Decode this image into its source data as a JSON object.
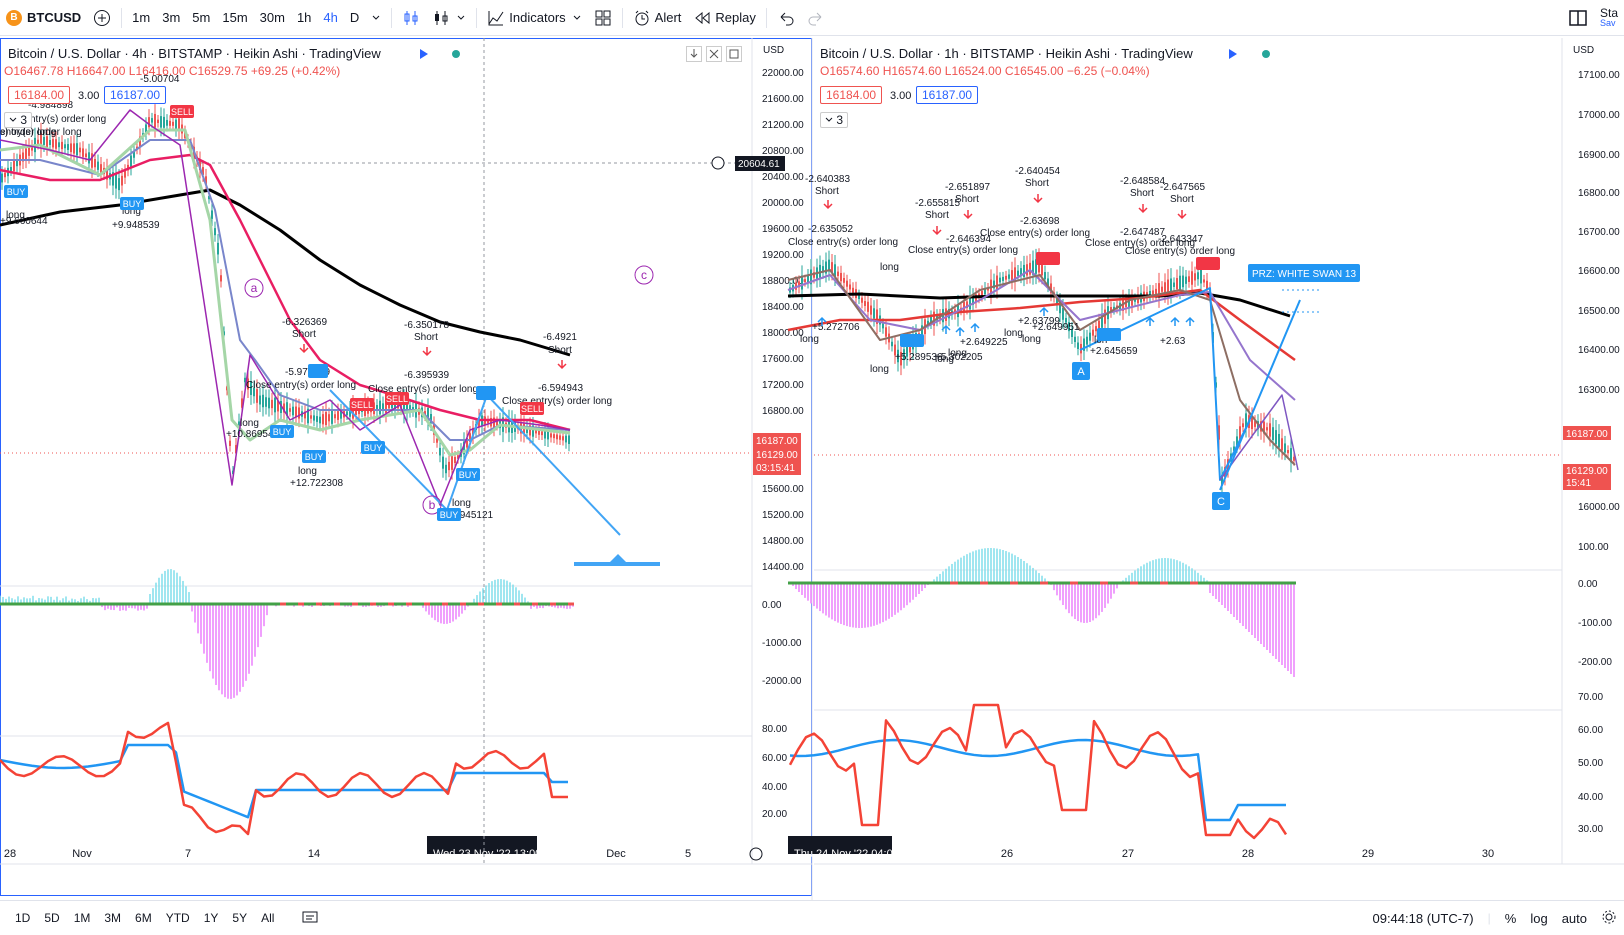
{
  "toolbar": {
    "symbol": "BTCUSD",
    "symbol_icon": "B",
    "timeframes": [
      "1m",
      "3m",
      "5m",
      "15m",
      "30m",
      "1h",
      "4h",
      "D"
    ],
    "active_timeframe": "4h",
    "indicators_label": "Indicators",
    "alert_label": "Alert",
    "replay_label": "Replay",
    "save_top": "Sta",
    "save_bottom": "Sav"
  },
  "left_chart": {
    "title": "Bitcoin / U.S. Dollar · 4h · BITSTAMP · Heikin Ashi · TradingView",
    "ohlc": "O16467.78 H16647.00 L16416.00 C16529.75 +69.25 (+0.42%)",
    "bid": "16184.00",
    "qty": "3.00",
    "ask": "16187.00",
    "collapse_count": "3",
    "currency": "USD",
    "y_labels": [
      "22000.00",
      "21600.00",
      "21200.00",
      "20800.00",
      "20400.00",
      "20000.00",
      "19600.00",
      "19200.00",
      "18800.00",
      "18400.00",
      "18000.00",
      "17600.00",
      "17200.00",
      "16800.00",
      "15600.00",
      "15200.00",
      "14800.00",
      "14400.00"
    ],
    "crosshair_price": "20604.61",
    "price_tag_1": "16187.00",
    "price_tag_2": "16129.00",
    "price_tag_3": "03:15:41",
    "macd_labels": [
      "0.00",
      "-1000.00",
      "-2000.00"
    ],
    "rsi_labels": [
      "80.00",
      "60.00",
      "40.00",
      "20.00"
    ],
    "x_labels": [
      "28",
      "Nov",
      "7",
      "14",
      "Dec",
      "5"
    ],
    "x_highlight": "Wed 23 Nov '22",
    "x_highlight_time": "13:00",
    "wave_a": "a",
    "wave_b": "b",
    "wave_c": "c",
    "annotations": [
      {
        "text": "-6.326369"
      },
      {
        "text": "Short"
      },
      {
        "text": "-6.350178"
      },
      {
        "text": "Short"
      },
      {
        "text": "-6.4921"
      },
      {
        "text": "Short"
      },
      {
        "text": "-5.979329"
      },
      {
        "text": "-6.395939"
      },
      {
        "text": "-6.594943"
      },
      {
        "text": "Close entry(s) order long"
      },
      {
        "text": "Close entry(s) order long"
      },
      {
        "text": "Close entry(s) order long"
      },
      {
        "text": "long"
      },
      {
        "text": "+10.869543"
      },
      {
        "text": "long"
      },
      {
        "text": "+12.722308"
      },
      {
        "text": "long"
      },
      {
        "text": "+12.945121"
      },
      {
        "text": "long"
      },
      {
        "text": "+9.948539"
      },
      {
        "text": "long"
      },
      {
        "text": "+9.660644"
      },
      {
        "text": "-5.00704"
      },
      {
        "text": "-4.984898"
      },
      {
        "text": "ntry(s) order long"
      },
      {
        "text": "entry(s) order long"
      },
      {
        "text": "s) order long"
      }
    ],
    "tags": [
      "SELL",
      "SELL",
      "SELL",
      "SELL",
      "BUY",
      "BUY",
      "BUY",
      "BUY",
      "BUY",
      "BUY",
      "BUY"
    ]
  },
  "right_chart": {
    "title": "Bitcoin / U.S. Dollar · 1h · BITSTAMP · Heikin Ashi · TradingView",
    "ohlc": "O16574.60 H16574.60 L16524.00 C16545.00 −6.25 (−0.04%)",
    "bid": "16184.00",
    "qty": "3.00",
    "ask": "16187.00",
    "collapse_count": "3",
    "currency": "USD",
    "y_labels": [
      "17100.00",
      "17000.00",
      "16900.00",
      "16800.00",
      "16700.00",
      "16600.00",
      "16500.00",
      "16400.00",
      "16300.00",
      "16000.00"
    ],
    "price_tag_1": "16187.00",
    "price_tag_2": "16129.00",
    "price_tag_3": "15:41",
    "macd_labels": [
      "100.00",
      "0.00",
      "-100.00",
      "-200.00"
    ],
    "rsi_labels": [
      "70.00",
      "60.00",
      "50.00",
      "40.00",
      "30.00"
    ],
    "x_labels": [
      "26",
      "27",
      "28",
      "29",
      "30"
    ],
    "x_highlight": "Thu 24 Nov '22",
    "x_highlight_time": "04:00",
    "prz_label": "PRZ: WHITE SWAN 13",
    "wave_A": "A",
    "wave_C": "C",
    "annotations": [
      {
        "text": "-2.640383"
      },
      {
        "text": "Short"
      },
      {
        "text": "-2.651897"
      },
      {
        "text": "Short"
      },
      {
        "text": "-2.640454"
      },
      {
        "text": "Short"
      },
      {
        "text": "-2.648584"
      },
      {
        "text": "Short"
      },
      {
        "text": "-2.647565"
      },
      {
        "text": "Short"
      },
      {
        "text": "-2.655815"
      },
      {
        "text": "Short"
      },
      {
        "text": "-2.635052"
      },
      {
        "text": "-2.646394"
      },
      {
        "text": "-2.63698"
      },
      {
        "text": "-2.647487"
      },
      {
        "text": "-2.643347"
      },
      {
        "text": "Close entry(s) order long"
      },
      {
        "text": "Close entry(s) order long"
      },
      {
        "text": "Close entry(s) order long"
      },
      {
        "text": "Close entry(s) order long"
      },
      {
        "text": "Close entry(s) order long"
      },
      {
        "text": "long"
      },
      {
        "text": "+5.272706"
      },
      {
        "text": "long"
      },
      {
        "text": "+5.289536"
      },
      {
        "text": "long"
      },
      {
        "text": "+5.302205"
      },
      {
        "text": "long"
      },
      {
        "text": "+2.649225"
      },
      {
        "text": "long"
      },
      {
        "text": "+2.63799"
      },
      {
        "text": "long"
      },
      {
        "text": "+2.649951"
      },
      {
        "text": "long"
      },
      {
        "text": "+2.645659"
      },
      {
        "text": "lon"
      },
      {
        "text": "+2.63"
      }
    ]
  },
  "bottom": {
    "ranges": [
      "1D",
      "5D",
      "1M",
      "3M",
      "6M",
      "YTD",
      "1Y",
      "5Y",
      "All"
    ],
    "clock": "09:44:18 (UTC-7)",
    "percent": "%",
    "log": "log",
    "auto": "auto"
  },
  "colors": {
    "accent": "#2962ff",
    "down": "#ef5350",
    "up": "#26a69a",
    "ema_long": "#000000",
    "ema_red": "#e91e63"
  }
}
